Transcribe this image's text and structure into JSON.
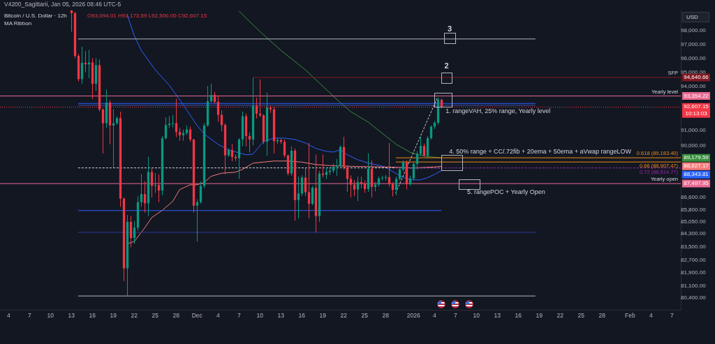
{
  "chart_data": {
    "type": "candlestick",
    "title": "Bitcoin / U.S. Dollar · 12h",
    "subtitle": "O93,094.01 H93,173.59 L92,500.00 C92,607.15",
    "legend_title": "MA Ribbon",
    "ylabel": "USD",
    "log": true,
    "x": [
      "2025-11-13T00:00",
      "2025-11-13T12:00",
      "2025-11-14T00:00",
      "2025-11-14T12:00",
      "2025-11-15T00:00",
      "2025-11-15T12:00",
      "2025-11-16T00:00",
      "2025-11-16T12:00",
      "2025-11-17T00:00",
      "2025-11-17T12:00",
      "2025-11-18T00:00",
      "2025-11-18T12:00",
      "2025-11-19T00:00",
      "2025-11-19T12:00",
      "2025-11-20T00:00",
      "2025-11-20T12:00",
      "2025-11-21T00:00",
      "2025-11-21T12:00",
      "2025-11-22T00:00",
      "2025-11-22T12:00",
      "2025-11-23T00:00",
      "2025-11-23T12:00",
      "2025-11-24T00:00",
      "2025-11-24T12:00",
      "2025-11-25T00:00",
      "2025-11-25T12:00",
      "2025-11-26T00:00",
      "2025-11-26T12:00",
      "2025-11-27T00:00",
      "2025-11-27T12:00",
      "2025-11-28T00:00",
      "2025-11-28T12:00",
      "2025-11-29T00:00",
      "2025-11-29T12:00",
      "2025-11-30T00:00",
      "2025-11-30T12:00",
      "2025-12-01T00:00",
      "2025-12-01T12:00",
      "2025-12-02T00:00",
      "2025-12-02T12:00",
      "2025-12-03T00:00",
      "2025-12-03T12:00",
      "2025-12-04T00:00",
      "2025-12-04T12:00",
      "2025-12-05T00:00",
      "2025-12-05T12:00",
      "2025-12-06T00:00",
      "2025-12-06T12:00",
      "2025-12-07T00:00",
      "2025-12-07T12:00",
      "2025-12-08T00:00",
      "2025-12-08T12:00",
      "2025-12-09T00:00",
      "2025-12-09T12:00",
      "2025-12-10T00:00",
      "2025-12-10T12:00",
      "2025-12-11T00:00",
      "2025-12-11T12:00",
      "2025-12-12T00:00",
      "2025-12-12T12:00",
      "2025-12-13T00:00",
      "2025-12-13T12:00",
      "2025-12-14T00:00",
      "2025-12-14T12:00",
      "2025-12-15T00:00",
      "2025-12-15T12:00",
      "2025-12-16T00:00",
      "2025-12-16T12:00",
      "2025-12-17T00:00",
      "2025-12-17T12:00",
      "2025-12-18T00:00",
      "2025-12-18T12:00",
      "2025-12-19T00:00",
      "2025-12-19T12:00",
      "2025-12-20T00:00",
      "2025-12-20T12:00",
      "2025-12-21T00:00",
      "2025-12-21T12:00",
      "2025-12-22T00:00",
      "2025-12-22T12:00",
      "2025-12-23T00:00",
      "2025-12-23T12:00",
      "2025-12-24T00:00",
      "2025-12-24T12:00",
      "2025-12-25T00:00",
      "2025-12-25T12:00",
      "2025-12-26T00:00",
      "2025-12-26T12:00",
      "2025-12-27T00:00",
      "2025-12-27T12:00",
      "2025-12-28T00:00",
      "2025-12-28T12:00",
      "2025-12-29T00:00",
      "2025-12-29T12:00",
      "2025-12-30T00:00",
      "2025-12-30T12:00",
      "2025-12-31T00:00",
      "2025-12-31T12:00",
      "2026-01-01T00:00",
      "2026-01-01T12:00",
      "2026-01-02T00:00",
      "2026-01-02T12:00",
      "2026-01-03T00:00",
      "2026-01-03T12:00",
      "2026-01-04T00:00",
      "2026-01-04T12:00",
      "2026-01-05T00:00"
    ],
    "ohlc": [
      [
        99450,
        99480,
        97900,
        99250
      ],
      [
        99250,
        99350,
        96000,
        96160
      ],
      [
        96160,
        96300,
        94370,
        94530
      ],
      [
        94530,
        96820,
        94200,
        95670
      ],
      [
        95670,
        96500,
        95000,
        95560
      ],
      [
        95560,
        96580,
        94610,
        95700
      ],
      [
        95700,
        96000,
        93160,
        94200
      ],
      [
        94200,
        96000,
        93720,
        95510
      ],
      [
        95510,
        95900,
        92300,
        92430
      ],
      [
        92430,
        92500,
        89470,
        91490
      ],
      [
        91490,
        93800,
        91180,
        92900
      ],
      [
        92900,
        93060,
        90080,
        91340
      ],
      [
        91340,
        92440,
        88560,
        91490
      ],
      [
        91490,
        91970,
        91400,
        91840
      ],
      [
        91840,
        92280,
        86010,
        86530
      ],
      [
        86530,
        86600,
        81410,
        82180
      ],
      [
        82180,
        85490,
        80520,
        85060
      ],
      [
        85060,
        85420,
        83460,
        84040
      ],
      [
        84040,
        85120,
        83680,
        84690
      ],
      [
        84690,
        86680,
        84500,
        86300
      ],
      [
        86300,
        88100,
        86010,
        86820
      ],
      [
        86820,
        87650,
        85640,
        86230
      ],
      [
        86230,
        89240,
        85420,
        88250
      ],
      [
        88250,
        88560,
        86600,
        87350
      ],
      [
        87350,
        88180,
        86900,
        87400
      ],
      [
        87400,
        88100,
        86300,
        87050
      ],
      [
        87050,
        90630,
        86750,
        90480
      ],
      [
        90480,
        91890,
        90400,
        91370
      ],
      [
        91370,
        91970,
        91180,
        91460
      ],
      [
        91460,
        92050,
        91200,
        91500
      ],
      [
        91500,
        93160,
        90560,
        90900
      ],
      [
        90900,
        91180,
        90320,
        90680
      ],
      [
        90680,
        91060,
        90320,
        90830
      ],
      [
        90830,
        91340,
        90700,
        91070
      ],
      [
        91070,
        91260,
        90250,
        90400
      ],
      [
        90400,
        90450,
        85640,
        86080
      ],
      [
        86080,
        86480,
        83820,
        86300
      ],
      [
        86300,
        87650,
        86200,
        87350
      ],
      [
        87350,
        91490,
        87200,
        91340
      ],
      [
        91340,
        94050,
        91260,
        92990
      ],
      [
        92990,
        94200,
        92900,
        93430
      ],
      [
        93430,
        93640,
        92850,
        92950
      ],
      [
        92950,
        93400,
        91600,
        92060
      ],
      [
        92060,
        92360,
        90950,
        91370
      ],
      [
        91370,
        91490,
        88100,
        89340
      ],
      [
        89340,
        89800,
        89240,
        89690
      ],
      [
        89690,
        90090,
        88940,
        89240
      ],
      [
        89240,
        89400,
        88970,
        89160
      ],
      [
        89160,
        90480,
        87800,
        90400
      ],
      [
        90400,
        92280,
        89940,
        91970
      ],
      [
        91970,
        92150,
        89940,
        90630
      ],
      [
        90630,
        90870,
        89550,
        90400
      ],
      [
        90400,
        94610,
        90010,
        92680
      ],
      [
        92680,
        93240,
        91810,
        92140
      ],
      [
        92140,
        94500,
        91900,
        92030
      ],
      [
        92030,
        92100,
        90090,
        90250
      ],
      [
        90250,
        93590,
        89320,
        92560
      ],
      [
        92560,
        92680,
        92200,
        92440
      ],
      [
        92440,
        92600,
        89470,
        90280
      ],
      [
        90280,
        90500,
        90100,
        90360
      ],
      [
        90360,
        90450,
        90100,
        90250
      ],
      [
        90250,
        90400,
        89200,
        89340
      ],
      [
        89340,
        89400,
        88030,
        88160
      ],
      [
        88160,
        89940,
        88000,
        89650
      ],
      [
        89650,
        89800,
        85130,
        86440
      ],
      [
        86440,
        87960,
        85280,
        86860
      ],
      [
        86860,
        88030,
        86700,
        87890
      ],
      [
        87890,
        88560,
        86700,
        86940
      ],
      [
        86940,
        90170,
        85280,
        86200
      ],
      [
        86200,
        87350,
        86100,
        87230
      ],
      [
        87230,
        89400,
        84400,
        85420
      ],
      [
        85420,
        88330,
        85060,
        88150
      ],
      [
        88150,
        89400,
        87900,
        88070
      ],
      [
        88070,
        88560,
        87800,
        88250
      ],
      [
        88250,
        88500,
        88050,
        88340
      ],
      [
        88340,
        88800,
        88200,
        88590
      ],
      [
        88590,
        89100,
        88000,
        88680
      ],
      [
        88680,
        90010,
        88500,
        89900
      ],
      [
        89900,
        90580,
        88400,
        88560
      ],
      [
        88560,
        88700,
        86970,
        87800
      ],
      [
        87800,
        88030,
        86600,
        87430
      ],
      [
        87430,
        87720,
        86680,
        87120
      ],
      [
        87120,
        87950,
        86380,
        87600
      ],
      [
        87600,
        87950,
        87200,
        87470
      ],
      [
        87470,
        87700,
        86900,
        87150
      ],
      [
        87150,
        89480,
        86970,
        88470
      ],
      [
        88470,
        89010,
        86600,
        87280
      ],
      [
        87280,
        87600,
        87000,
        87430
      ],
      [
        87430,
        87960,
        87300,
        87830
      ],
      [
        87830,
        88000,
        87700,
        87870
      ],
      [
        87870,
        88050,
        87700,
        87920
      ],
      [
        87920,
        90170,
        87300,
        87460
      ],
      [
        87460,
        87600,
        86680,
        87090
      ],
      [
        87090,
        87950,
        86750,
        87800
      ],
      [
        87800,
        88600,
        87700,
        88410
      ],
      [
        88410,
        89010,
        88300,
        88890
      ],
      [
        88890,
        89010,
        87120,
        87460
      ],
      [
        87460,
        88000,
        87350,
        87830
      ],
      [
        87830,
        88940,
        87700,
        88780
      ],
      [
        88780,
        89630,
        88410,
        89440
      ],
      [
        89440,
        90580,
        89300,
        89970
      ],
      [
        89970,
        90130,
        89300,
        89320
      ],
      [
        89320,
        90630,
        89200,
        90490
      ],
      [
        90490,
        91340,
        90400,
        91260
      ],
      [
        91260,
        91650,
        91100,
        91530
      ],
      [
        91530,
        93250,
        91400,
        93094.01
      ],
      [
        93094.01,
        93173.59,
        92500.0,
        92607.15
      ]
    ],
    "colors": [
      "#f23645",
      "#f23645",
      "#f23645",
      "#089981",
      "#f23645",
      "#089981",
      "#f23645",
      "#089981",
      "#f23645",
      "#f23645",
      "#089981",
      "#f23645",
      "#089981",
      "#089981",
      "#f23645",
      "#f23645",
      "#089981",
      "#f23645",
      "#089981",
      "#089981",
      "#089981",
      "#f23645",
      "#089981",
      "#f23645",
      "#089981",
      "#f23645",
      "#089981",
      "#089981",
      "#089981",
      "#089981",
      "#f23645",
      "#f23645",
      "#089981",
      "#089981",
      "#f23645",
      "#f23645",
      "#089981",
      "#089981",
      "#089981",
      "#089981",
      "#089981",
      "#f23645",
      "#f23645",
      "#f23645",
      "#f23645",
      "#089981",
      "#f23645",
      "#f23645",
      "#089981",
      "#089981",
      "#f23645",
      "#f23645",
      "#089981",
      "#f23645",
      "#f23645",
      "#f23645",
      "#089981",
      "#f23645",
      "#f23645",
      "#089981",
      "#f23645",
      "#f23645",
      "#f23645",
      "#089981",
      "#f23645",
      "#089981",
      "#089981",
      "#f23645",
      "#f23645",
      "#089981",
      "#f23645",
      "#089981",
      "#f23645",
      "#089981",
      "#089981",
      "#089981",
      "#089981",
      "#089981",
      "#f23645",
      "#f23645",
      "#f23645",
      "#f23645",
      "#089981",
      "#f23645",
      "#f23645",
      "#089981",
      "#f23645",
      "#089981",
      "#089981",
      "#089981",
      "#089981",
      "#f23645",
      "#f23645",
      "#089981",
      "#089981",
      "#089981",
      "#f23645",
      "#089981",
      "#089981",
      "#089981",
      "#089981",
      "#f23645",
      "#089981",
      "#089981",
      "#089981",
      "#089981",
      "#f23645"
    ],
    "series": [
      {
        "type": "line",
        "color": "#2962ff",
        "x": [
          "2025-11-21T00:00",
          "2025-11-22T00:00",
          "2025-11-23T00:00",
          "2025-11-25T00:00",
          "2025-11-27T00:00",
          "2025-11-29T00:00",
          "2025-12-01T00:00",
          "2025-12-02T00:00",
          "2025-12-04T00:00",
          "2025-12-05T12:00",
          "2025-12-08T00:00",
          "2025-12-09T00:00",
          "2025-12-10T12:00",
          "2025-12-12T00:00",
          "2025-12-13T12:00",
          "2025-12-15T00:00",
          "2025-12-16T12:00",
          "2025-12-18T00:00",
          "2025-12-19T12:00",
          "2025-12-20T12:00",
          "2025-12-21T12:00",
          "2025-12-22T12:00",
          "2025-12-24T00:00",
          "2025-12-25T12:00",
          "2025-12-27T00:00",
          "2025-12-28T00:00",
          "2025-12-30T00:00",
          "2025-12-31T00:00",
          "2026-01-01T00:00",
          "2026-01-02T00:00",
          "2026-01-03T00:00",
          "2026-01-04T00:00",
          "2026-01-05T00:00"
        ],
        "values": [
          99130,
          97610,
          96560,
          95180,
          94110,
          92760,
          91340,
          90770,
          90080,
          89710,
          89380,
          89430,
          90260,
          90490,
          90490,
          90400,
          90170,
          89800,
          89610,
          89560,
          89710,
          89380,
          89060,
          88830,
          88700,
          88560,
          88010,
          87830,
          87740,
          87740,
          87880,
          88100,
          88343.81
        ]
      },
      {
        "type": "line",
        "color": "#f47c7c",
        "x": [
          "2025-11-21T00:00",
          "2025-11-22T00:00",
          "2025-11-23T12:00",
          "2025-11-24T12:00",
          "2025-11-26T00:00",
          "2025-11-27T12:00",
          "2025-11-28T12:00",
          "2025-11-30T00:00",
          "2025-12-01T00:00",
          "2025-12-02T00:00",
          "2025-12-03T00:00",
          "2025-12-04T12:00",
          "2025-12-06T12:00",
          "2025-12-07T12:00",
          "2025-12-09T00:00",
          "2025-12-10T12:00",
          "2025-12-12T00:00",
          "2025-12-14T00:00",
          "2025-12-16T00:00",
          "2025-12-18T00:00",
          "2025-12-20T00:00",
          "2025-12-23T00:00",
          "2025-12-26T00:00",
          "2025-12-29T12:00",
          "2026-01-01T00:00",
          "2026-01-03T00:00",
          "2026-01-04T00:00",
          "2026-01-05T00:00"
        ],
        "values": [
          83690,
          83830,
          84680,
          85330,
          85780,
          86350,
          87110,
          87420,
          87420,
          87560,
          87970,
          88170,
          88240,
          88420,
          88830,
          88900,
          88970,
          88970,
          88900,
          88740,
          88670,
          88620,
          88600,
          88560,
          88510,
          88560,
          88580,
          88627.17
        ]
      },
      {
        "type": "line",
        "color": "#388e3c",
        "x": [
          "2025-12-07T00:00",
          "2025-12-10T00:00",
          "2025-12-13T00:00",
          "2025-12-16T12:00",
          "2025-12-21T12:00",
          "2025-12-23T00:00",
          "2025-12-25T12:00",
          "2025-12-28T00:00",
          "2025-12-29T12:00",
          "2025-12-31T12:00",
          "2026-01-02T12:00",
          "2026-01-05T00:00"
        ],
        "values": [
          99400,
          97910,
          96560,
          95180,
          92900,
          92280,
          91570,
          90630,
          90080,
          89550,
          89290,
          89179.59
        ]
      },
      {
        "type": "line",
        "color": "#b2b5be",
        "x": [
          "2025-11-13T23:00",
          "2026-01-18T11:00"
        ],
        "values": [
          97375,
          97375
        ]
      },
      {
        "type": "line",
        "color": "#b2b5be",
        "x": [
          "2025-11-13T23:00",
          "2026-01-18T11:00"
        ],
        "values": [
          80520,
          80520
        ]
      },
      {
        "type": "line",
        "color": "#2962ff",
        "x": [
          "2025-11-13T23:00",
          "2026-01-18T11:00"
        ],
        "values": [
          92840,
          92840
        ]
      },
      {
        "type": "line",
        "color": "#3f51b5",
        "x": [
          "2025-11-13T23:00",
          "2026-01-18T11:00"
        ],
        "values": [
          92715,
          92715
        ]
      },
      {
        "type": "line",
        "color": "#d1d4dc",
        "line_style": "dashed",
        "x": [
          "2025-11-13T23:00",
          "2026-01-05T00:00"
        ],
        "values": [
          88520,
          88520
        ]
      },
      {
        "type": "line",
        "color": "#2962ff",
        "x": [
          "2025-11-13T23:00",
          "2026-01-05T00:00"
        ],
        "values": [
          85770,
          85770
        ]
      },
      {
        "type": "line",
        "color": "#2a3f9d",
        "x": [
          "2025-11-13T23:00",
          "2026-01-18T11:00"
        ],
        "values": [
          84400,
          84400
        ]
      },
      {
        "type": "line",
        "name": "SFP",
        "color": "#801922",
        "x": [
          "2025-12-09T00:00",
          "2026-02-08T06:30"
        ],
        "values": [
          94640.66,
          94640.66
        ],
        "value_labels": [
          null,
          "94,640.66"
        ]
      },
      {
        "type": "line",
        "name": "Yearly level",
        "color": "#e86a92",
        "x": [
          "2025-11-02T18:30",
          "2026-02-08T06:30"
        ],
        "values": [
          93354.22,
          93354.22
        ],
        "value_labels": [
          null,
          "93,354.22"
        ]
      },
      {
        "type": "line",
        "name": "Yearly open",
        "color": "#e86a92",
        "x": [
          "2025-11-02T18:30",
          "2026-02-08T06:30"
        ],
        "values": [
          87497.95,
          87497.95
        ],
        "value_labels": [
          null,
          "87,497.95"
        ]
      },
      {
        "type": "line",
        "name": "0.618 (89,183.40)",
        "color": "#ef8a17",
        "x": [
          "2025-12-29T11:00",
          "2026-02-08T06:30"
        ],
        "values": [
          89183.4,
          89183.4
        ]
      },
      {
        "type": "line",
        "name": "0.66 (88,907.47)",
        "color": "#ef8a17",
        "x": [
          "2025-12-29T11:00",
          "2026-02-08T06:30"
        ],
        "values": [
          88907.47,
          88907.47
        ]
      },
      {
        "type": "line",
        "name": "0.72 (88,514.77)",
        "color": "#9c27b0",
        "line_style": "dashed",
        "x": [
          "2025-12-29T11:00",
          "2026-02-08T06:30"
        ],
        "values": [
          88514.77,
          88514.77
        ]
      },
      {
        "type": "line",
        "color": "#d1d4dc",
        "line_style": "dashed",
        "x": [
          "2025-12-29T10:30",
          "2026-01-04T10:30"
        ],
        "values": [
          86890,
          93270
        ]
      }
    ],
    "ref_lines": [
      {
        "axis": "y",
        "value": 92607.15,
        "label": "92,607.15",
        "color": "#f23645",
        "line_style": "dotted"
      }
    ],
    "annotations": [
      "V4200_Sagittarii, Jan 05, 2026 08:46 UTC-5",
      "1. rangeVAH, 25% range, Yearly level",
      "2",
      "3",
      "4. 50% range + CC/.72fib + 20ema + 50ema + aVwap rangeLOW",
      "5. rangePOC + Yearly Open",
      "10:13:03",
      "89,179.59",
      "88,627.17",
      "88,343.81"
    ],
    "xlim": [
      "2025-11-02T18:30",
      "2026-02-08T06:30"
    ],
    "xticks": [
      {
        "value": "2025-11-04",
        "label": "4"
      },
      {
        "value": "2025-11-07",
        "label": "7"
      },
      {
        "value": "2025-11-10",
        "label": "10"
      },
      {
        "value": "2025-11-13",
        "label": "13"
      },
      {
        "value": "2025-11-16",
        "label": "16"
      },
      {
        "value": "2025-11-19",
        "label": "19"
      },
      {
        "value": "2025-11-22",
        "label": "22"
      },
      {
        "value": "2025-11-25",
        "label": "25"
      },
      {
        "value": "2025-11-28",
        "label": "28"
      },
      {
        "value": "2025-12-01",
        "label": "Dec"
      },
      {
        "value": "2025-12-04",
        "label": "4"
      },
      {
        "value": "2025-12-07",
        "label": "7"
      },
      {
        "value": "2025-12-10",
        "label": "10"
      },
      {
        "value": "2025-12-13",
        "label": "13"
      },
      {
        "value": "2025-12-16",
        "label": "16"
      },
      {
        "value": "2025-12-19",
        "label": "19"
      },
      {
        "value": "2025-12-22",
        "label": "22"
      },
      {
        "value": "2025-12-25",
        "label": "25"
      },
      {
        "value": "2025-12-28",
        "label": "28"
      },
      {
        "value": "2026-01-01",
        "label": "2026"
      },
      {
        "value": "2026-01-04",
        "label": "4"
      },
      {
        "value": "2026-01-07",
        "label": "7"
      },
      {
        "value": "2026-01-10",
        "label": "10"
      },
      {
        "value": "2026-01-13",
        "label": "13"
      },
      {
        "value": "2026-01-16",
        "label": "16"
      },
      {
        "value": "2026-01-19",
        "label": "19"
      },
      {
        "value": "2026-01-22",
        "label": "22"
      },
      {
        "value": "2026-01-25",
        "label": "25"
      },
      {
        "value": "2026-01-28",
        "label": "28"
      },
      {
        "value": "2026-02-01",
        "label": "Feb"
      },
      {
        "value": "2026-02-04",
        "label": "4"
      },
      {
        "value": "2026-02-07",
        "label": "7"
      }
    ],
    "ylim": [
      79700,
      99500
    ],
    "yticks": [
      {
        "value": 98000,
        "label": "98,000.00"
      },
      {
        "value": 97000,
        "label": "97,000.00"
      },
      {
        "value": 96000,
        "label": "96,000.00"
      },
      {
        "value": 95000,
        "label": "95,000.00"
      },
      {
        "value": 94000,
        "label": "94,000.00"
      },
      {
        "value": 91000,
        "label": "91,000.00"
      },
      {
        "value": 90000,
        "label": "90,000.00"
      },
      {
        "value": 86600,
        "label": "86,600.00"
      },
      {
        "value": 85800,
        "label": "85,800.00"
      },
      {
        "value": 85050,
        "label": "85,050.00"
      },
      {
        "value": 84300,
        "label": "84,300.00"
      },
      {
        "value": 83500,
        "label": "83,500.00"
      },
      {
        "value": 82700,
        "label": "82,700.00"
      },
      {
        "value": 81900,
        "label": "81,900.00"
      },
      {
        "value": 81100,
        "label": "81,100.00"
      },
      {
        "value": 80400,
        "label": "80,400.00"
      }
    ]
  }
}
